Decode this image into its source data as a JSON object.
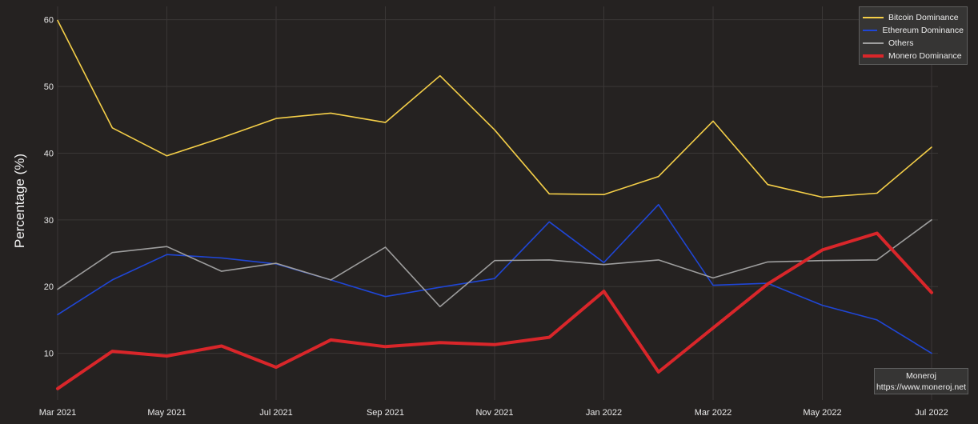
{
  "chart_data": {
    "type": "line",
    "title": "",
    "xlabel": "",
    "ylabel": "Percentage (%)",
    "x": [
      "2021-03",
      "2021-04",
      "2021-05",
      "2021-06",
      "2021-07",
      "2021-08",
      "2021-09",
      "2021-10",
      "2021-11",
      "2021-12",
      "2022-01",
      "2022-02",
      "2022-03",
      "2022-04",
      "2022-05",
      "2022-06",
      "2022-07"
    ],
    "x_tick_labels": [
      "Mar 2021",
      "May 2021",
      "Jul 2021",
      "Sep 2021",
      "Nov 2021",
      "Jan 2022",
      "Mar 2022",
      "May 2022",
      "Jul 2022"
    ],
    "y_ticks": [
      10,
      20,
      30,
      40,
      50,
      60
    ],
    "ylim": [
      3,
      62
    ],
    "grid": true,
    "legend_position": "top-right",
    "series": [
      {
        "name": "Bitcoin Dominance",
        "color": "#f5cf48",
        "width": 1.6,
        "values": [
          59.9,
          43.8,
          39.6,
          42.3,
          45.2,
          46.0,
          44.6,
          51.6,
          43.5,
          33.9,
          33.8,
          36.5,
          44.8,
          35.3,
          33.4,
          34.0,
          40.9
        ]
      },
      {
        "name": "Ethereum Dominance",
        "color": "#1f46d6",
        "width": 1.6,
        "values": [
          15.8,
          21.0,
          24.8,
          24.3,
          23.4,
          21.0,
          18.5,
          19.9,
          21.2,
          29.7,
          23.6,
          32.3,
          20.2,
          20.5,
          17.2,
          15.0,
          10.0
        ]
      },
      {
        "name": "Others",
        "color": "#9e9e9e",
        "width": 1.6,
        "values": [
          19.6,
          25.1,
          26.0,
          22.3,
          23.5,
          21.0,
          25.9,
          17.0,
          23.9,
          24.0,
          23.3,
          24.0,
          21.3,
          23.7,
          23.9,
          24.0,
          30.0
        ]
      },
      {
        "name": "Monero Dominance",
        "color": "#d9262a",
        "width": 4,
        "values": [
          4.7,
          10.3,
          9.6,
          11.1,
          7.9,
          12.0,
          11.0,
          11.6,
          11.3,
          12.4,
          19.3,
          7.2,
          13.8,
          20.4,
          25.5,
          28.0,
          19.1
        ]
      }
    ]
  },
  "credit": {
    "name": "Moneroj",
    "url": "https://www.moneroj.net"
  },
  "colors": {
    "background": "#252221",
    "grid": "#3a3736",
    "legend_bg": "#363534"
  }
}
